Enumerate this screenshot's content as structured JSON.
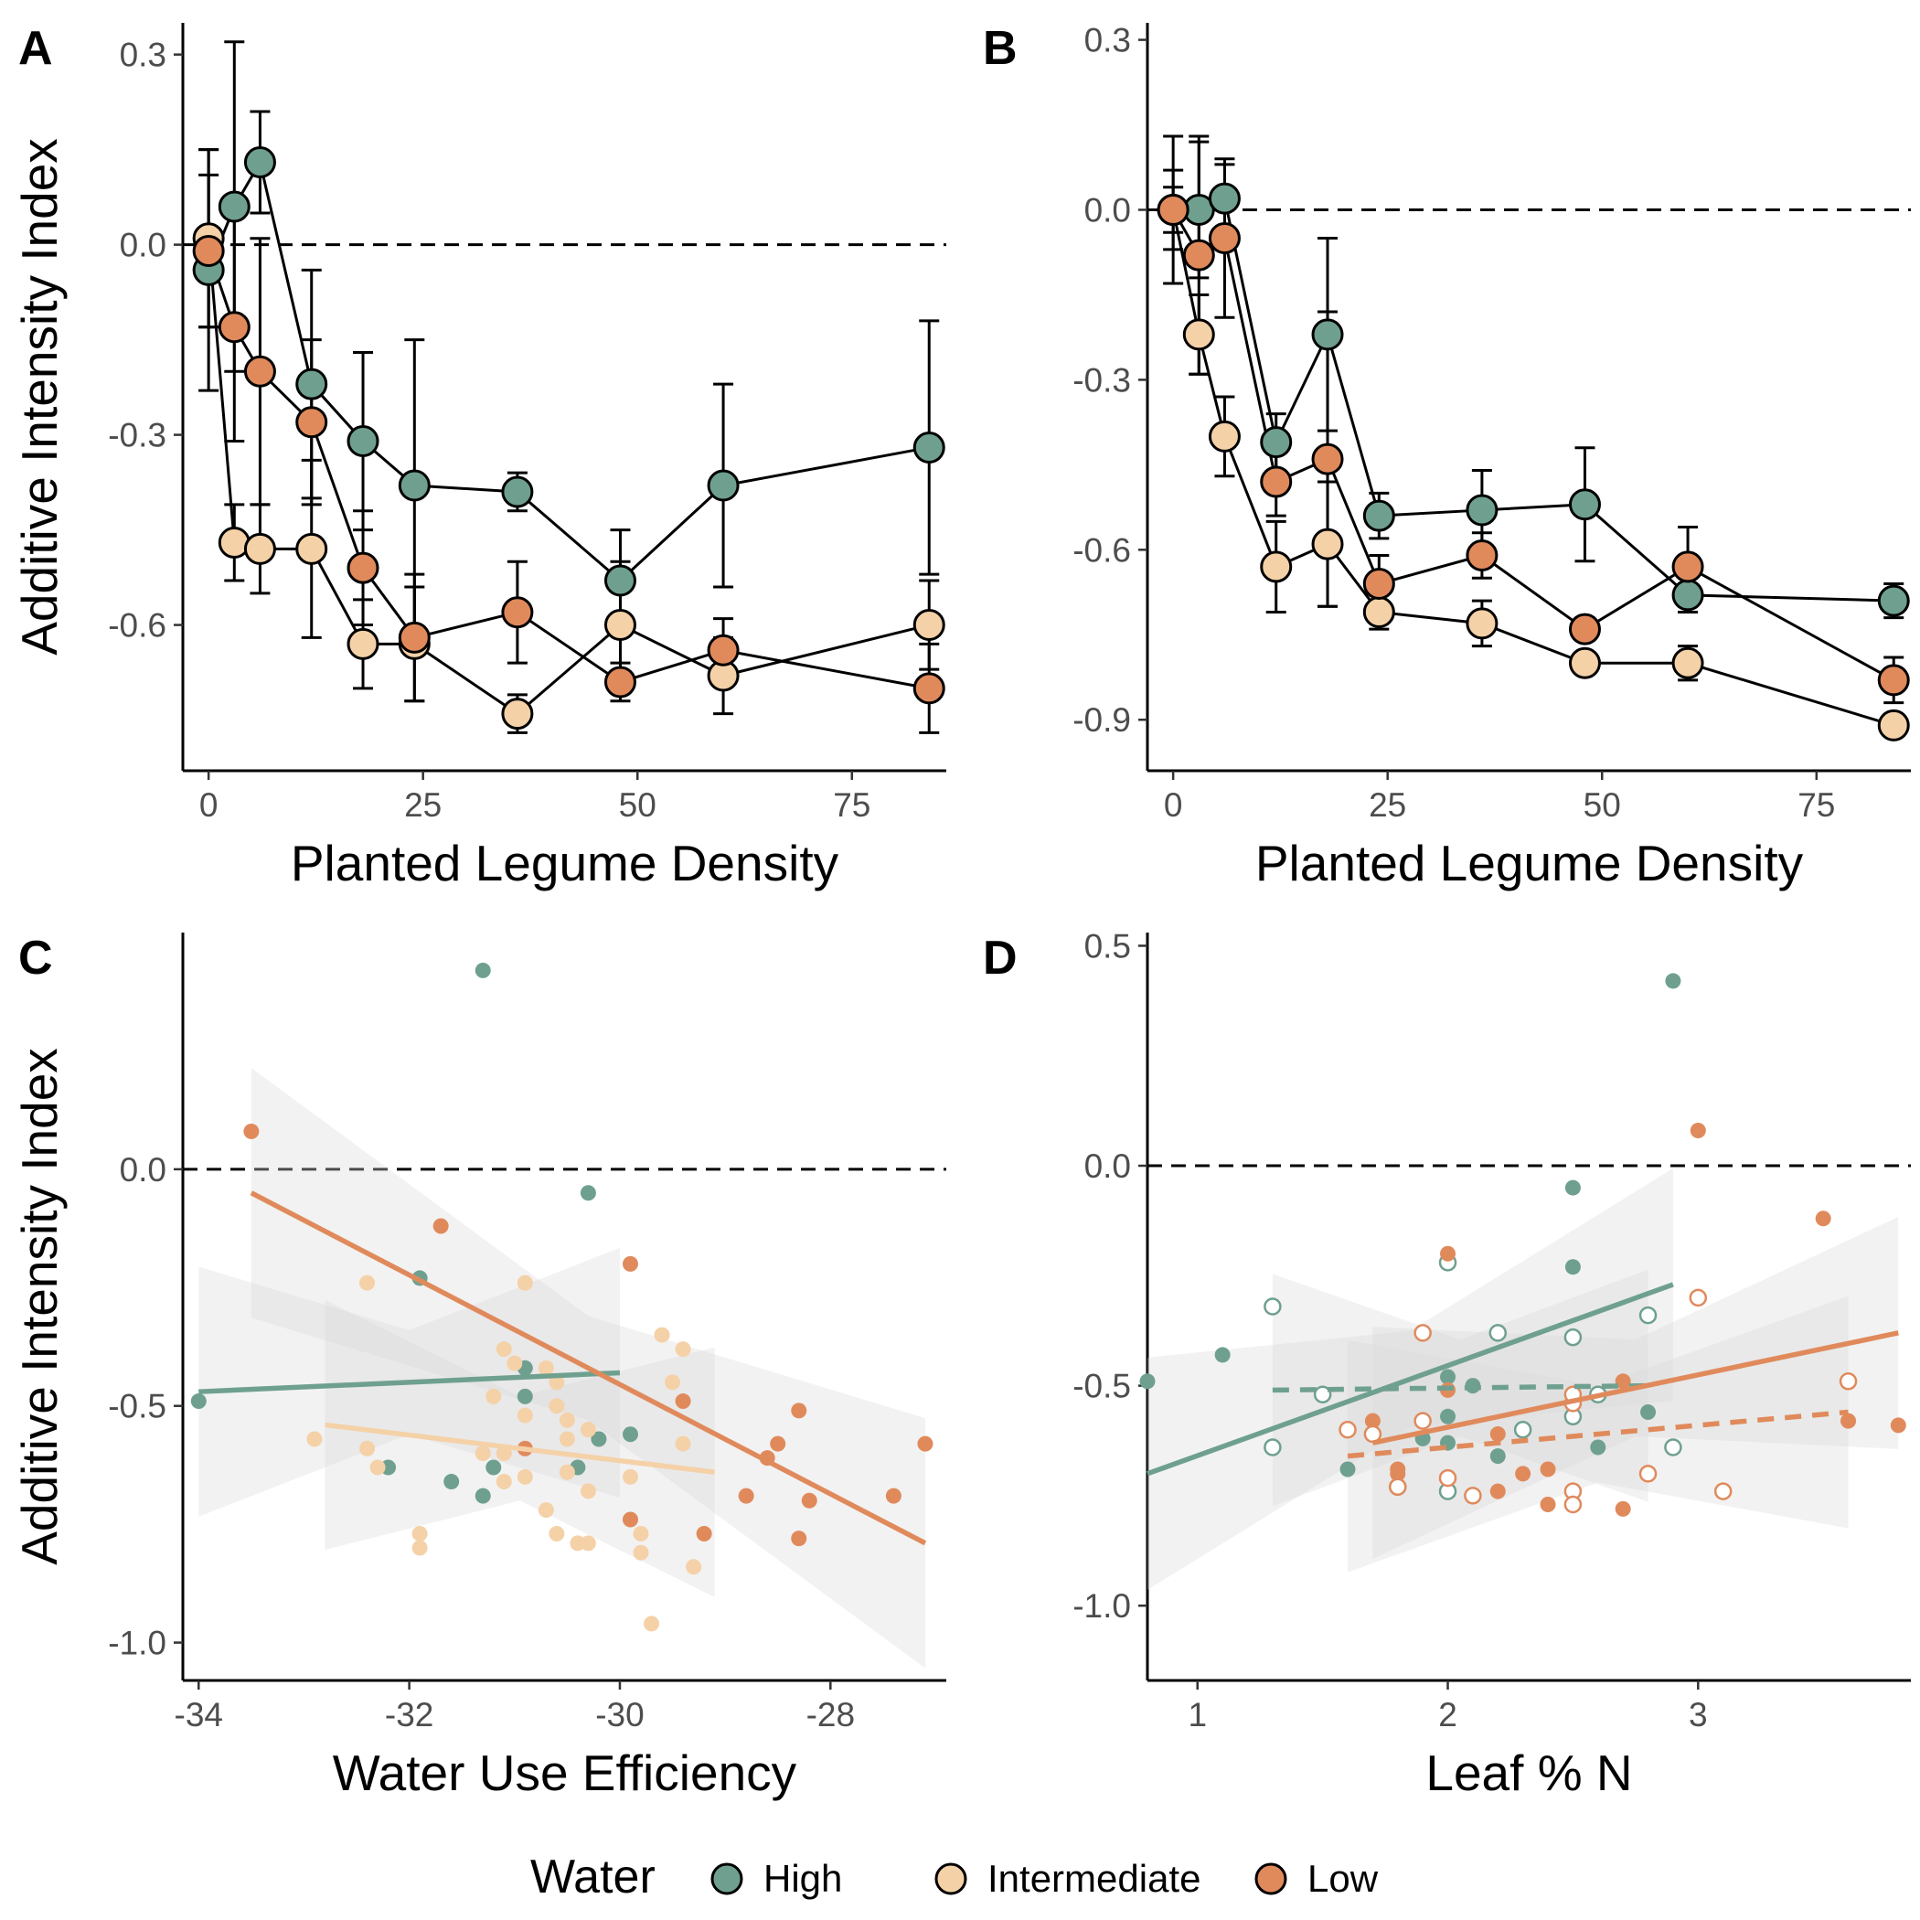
{
  "colors": {
    "High": "#6fa08f",
    "Intermediate": "#f5d1a8",
    "Low": "#e08a5c"
  },
  "legend": {
    "title": "Water",
    "items": [
      "High",
      "Intermediate",
      "Low"
    ]
  },
  "chart_data": [
    {
      "panel": "A",
      "type": "line",
      "xlabel": "Planted Legume Density",
      "ylabel": "Additive Intensity Index",
      "xlim": [
        -3,
        86
      ],
      "ylim": [
        -0.83,
        0.35
      ],
      "xticks": [
        0,
        25,
        50,
        75
      ],
      "xtick_labels": [
        "0",
        "25",
        "50",
        "75"
      ],
      "yticks": [
        0.3,
        0,
        -0.3,
        -0.6
      ],
      "ytick_labels": [
        "0.3",
        "0.0",
        "-0.3",
        "-0.6"
      ],
      "reference_line": 0,
      "series": [
        {
          "name": "High",
          "x": [
            0,
            3,
            6,
            12,
            18,
            24,
            36,
            48,
            60,
            84
          ],
          "y": [
            -0.04,
            0.06,
            0.13,
            -0.22,
            -0.31,
            -0.38,
            -0.39,
            -0.53,
            -0.38,
            -0.32
          ],
          "err": [
            0.19,
            0.26,
            0.08,
            0.18,
            0.14,
            0.23,
            0.03,
            0.08,
            0.16,
            0.2
          ]
        },
        {
          "name": "Intermediate",
          "x": [
            0,
            3,
            6,
            12,
            18,
            24,
            36,
            48,
            60,
            84
          ],
          "y": [
            0.01,
            -0.47,
            -0.48,
            -0.48,
            -0.63,
            -0.63,
            -0.74,
            -0.6,
            -0.68,
            -0.6
          ],
          "err": [
            0.14,
            0.06,
            0.07,
            0.14,
            0.07,
            0.09,
            0.03,
            0.1,
            0.06,
            0.07
          ]
        },
        {
          "name": "Low",
          "x": [
            0,
            3,
            6,
            12,
            18,
            24,
            36,
            48,
            60,
            84
          ],
          "y": [
            -0.01,
            -0.13,
            -0.2,
            -0.28,
            -0.51,
            -0.62,
            -0.58,
            -0.69,
            -0.64,
            -0.7
          ],
          "err": [
            0.12,
            0.18,
            0.21,
            0.13,
            0.09,
            0.1,
            0.08,
            0.03,
            0.05,
            0.07
          ]
        }
      ]
    },
    {
      "panel": "B",
      "type": "line",
      "xlabel": "Planted Legume Density",
      "ylabel": "",
      "xlim": [
        -3,
        86
      ],
      "ylim": [
        -0.99,
        0.33
      ],
      "xticks": [
        0,
        25,
        50,
        75
      ],
      "xtick_labels": [
        "0",
        "25",
        "50",
        "75"
      ],
      "yticks": [
        0.3,
        0,
        -0.3,
        -0.6,
        -0.9
      ],
      "ytick_labels": [
        "0.3",
        "0.0",
        "-0.3",
        "-0.6",
        "-0.9"
      ],
      "reference_line": 0,
      "series": [
        {
          "name": "High",
          "x": [
            0,
            3,
            6,
            12,
            18,
            24,
            36,
            48,
            60,
            84
          ],
          "y": [
            0,
            0,
            0.02,
            -0.41,
            -0.22,
            -0.54,
            -0.53,
            -0.52,
            -0.68,
            -0.69
          ],
          "err": [
            0.07,
            0.12,
            0.06,
            0.05,
            0.17,
            0.04,
            0.07,
            0.1,
            0.03,
            0.03
          ]
        },
        {
          "name": "Intermediate",
          "x": [
            0,
            3,
            6,
            12,
            18,
            24,
            36,
            48,
            60,
            84
          ],
          "y": [
            0,
            -0.22,
            -0.4,
            -0.63,
            -0.59,
            -0.71,
            -0.73,
            -0.8,
            -0.8,
            -0.91
          ],
          "err": [
            0.13,
            0.07,
            0.07,
            0.08,
            0.11,
            0.03,
            0.04,
            0.01,
            0.03,
            0.01
          ]
        },
        {
          "name": "Low",
          "x": [
            0,
            3,
            6,
            12,
            18,
            24,
            36,
            48,
            60,
            84
          ],
          "y": [
            0,
            -0.08,
            -0.05,
            -0.48,
            -0.44,
            -0.66,
            -0.61,
            -0.74,
            -0.63,
            -0.83
          ],
          "err": [
            0.04,
            0.21,
            0.14,
            0.06,
            0.26,
            0.05,
            0.04,
            0.02,
            0.07,
            0.04
          ]
        }
      ]
    },
    {
      "panel": "C",
      "type": "scatter",
      "xlabel": "Water Use Efficiency",
      "ylabel": "Additive Intensity Index",
      "xlim": [
        -34.15,
        -26.9
      ],
      "ylim": [
        -1.08,
        0.5
      ],
      "xticks": [
        -34,
        -32,
        -30,
        -28
      ],
      "xtick_labels": [
        "-34",
        "-32",
        "-30",
        "-28"
      ],
      "yticks": [
        0,
        -0.5,
        -1
      ],
      "ytick_labels": [
        "0.0",
        "-0.5",
        "-1.0"
      ],
      "reference_line": 0,
      "series": [
        {
          "name": "High",
          "points": [
            [
              -34,
              -0.49
            ],
            [
              -31.3,
              0.42
            ],
            [
              -30.3,
              -0.05
            ],
            [
              -31.9,
              -0.23
            ],
            [
              -30.9,
              -0.42
            ],
            [
              -30.9,
              -0.48
            ],
            [
              -30.2,
              -0.57
            ],
            [
              -29.9,
              -0.56
            ],
            [
              -30.4,
              -0.63
            ],
            [
              -31.2,
              -0.63
            ],
            [
              -31.6,
              -0.66
            ],
            [
              -32.2,
              -0.63
            ],
            [
              -31.3,
              -0.69
            ]
          ],
          "fit": {
            "x": [
              -34,
              -30
            ],
            "y": [
              -0.47,
              -0.43
            ]
          }
        },
        {
          "name": "Intermediate",
          "points": [
            [
              -32.4,
              -0.24
            ],
            [
              -30.9,
              -0.24
            ],
            [
              -31.1,
              -0.38
            ],
            [
              -29.6,
              -0.35
            ],
            [
              -29.4,
              -0.38
            ],
            [
              -30.7,
              -0.42
            ],
            [
              -31.0,
              -0.41
            ],
            [
              -30.6,
              -0.45
            ],
            [
              -31.2,
              -0.48
            ],
            [
              -29.5,
              -0.45
            ],
            [
              -30.9,
              -0.52
            ],
            [
              -30.6,
              -0.5
            ],
            [
              -30.5,
              -0.53
            ],
            [
              -30.3,
              -0.55
            ],
            [
              -32.9,
              -0.57
            ],
            [
              -32.4,
              -0.59
            ],
            [
              -31.3,
              -0.6
            ],
            [
              -30.5,
              -0.57
            ],
            [
              -29.4,
              -0.58
            ],
            [
              -32.3,
              -0.63
            ],
            [
              -30.9,
              -0.65
            ],
            [
              -31.1,
              -0.6
            ],
            [
              -30.5,
              -0.64
            ],
            [
              -29.9,
              -0.65
            ],
            [
              -30.3,
              -0.68
            ],
            [
              -31.1,
              -0.66
            ],
            [
              -30.7,
              -0.72
            ],
            [
              -31.9,
              -0.77
            ],
            [
              -31.9,
              -0.8
            ],
            [
              -30.6,
              -0.77
            ],
            [
              -29.8,
              -0.77
            ],
            [
              -30.4,
              -0.79
            ],
            [
              -30.3,
              -0.79
            ],
            [
              -29.8,
              -0.81
            ],
            [
              -29.3,
              -0.84
            ],
            [
              -29.7,
              -0.96
            ]
          ],
          "fit": {
            "x": [
              -32.8,
              -29.1
            ],
            "y": [
              -0.54,
              -0.64
            ]
          }
        },
        {
          "name": "Low",
          "points": [
            [
              -33.5,
              0.08
            ],
            [
              -31.7,
              -0.12
            ],
            [
              -29.9,
              -0.2
            ],
            [
              -30.9,
              -0.59
            ],
            [
              -29.4,
              -0.49
            ],
            [
              -28.3,
              -0.51
            ],
            [
              -28.5,
              -0.58
            ],
            [
              -27.1,
              -0.58
            ],
            [
              -28.6,
              -0.61
            ],
            [
              -28.8,
              -0.69
            ],
            [
              -28.2,
              -0.7
            ],
            [
              -27.4,
              -0.69
            ],
            [
              -29.9,
              -0.74
            ],
            [
              -29.2,
              -0.77
            ],
            [
              -28.3,
              -0.78
            ]
          ],
          "fit": {
            "x": [
              -33.5,
              -27.1
            ],
            "y": [
              -0.05,
              -0.79
            ]
          }
        }
      ]
    },
    {
      "panel": "D",
      "type": "scatter",
      "xlabel": "Leaf % N",
      "ylabel": "",
      "xlim": [
        0.8,
        3.85
      ],
      "ylim": [
        -1.17,
        0.53
      ],
      "xticks": [
        1,
        2,
        3
      ],
      "xtick_labels": [
        "1",
        "2",
        "3"
      ],
      "yticks": [
        0.5,
        0,
        -0.5,
        -1
      ],
      "ytick_labels": [
        "0.5",
        "0.0",
        "-0.5",
        "-1.0"
      ],
      "reference_line": 0,
      "series": [
        {
          "name": "High",
          "filled": true,
          "points": [
            [
              0.8,
              -0.49
            ],
            [
              1.1,
              -0.43
            ],
            [
              2.9,
              0.42
            ],
            [
              2.5,
              -0.05
            ],
            [
              2.5,
              -0.23
            ],
            [
              2.0,
              -0.48
            ],
            [
              2.1,
              -0.5
            ],
            [
              2.0,
              -0.57
            ],
            [
              1.9,
              -0.62
            ],
            [
              2.0,
              -0.63
            ],
            [
              2.2,
              -0.66
            ],
            [
              2.6,
              -0.64
            ],
            [
              2.8,
              -0.56
            ],
            [
              1.6,
              -0.69
            ]
          ],
          "fit": {
            "x": [
              0.8,
              2.9
            ],
            "y": [
              -0.7,
              -0.27
            ]
          }
        },
        {
          "name": "High",
          "filled": false,
          "points": [
            [
              1.3,
              -0.32
            ],
            [
              1.5,
              -0.52
            ],
            [
              2.0,
              -0.22
            ],
            [
              2.2,
              -0.38
            ],
            [
              2.5,
              -0.39
            ],
            [
              2.8,
              -0.34
            ],
            [
              2.5,
              -0.57
            ],
            [
              2.6,
              -0.52
            ],
            [
              2.3,
              -0.6
            ],
            [
              1.3,
              -0.64
            ],
            [
              2.9,
              -0.64
            ],
            [
              1.8,
              -0.73
            ],
            [
              2.0,
              -0.74
            ]
          ],
          "fit": {
            "x": [
              1.3,
              2.8
            ],
            "y": [
              -0.51,
              -0.5
            ]
          }
        },
        {
          "name": "Low",
          "filled": true,
          "points": [
            [
              3.0,
              0.08
            ],
            [
              3.5,
              -0.12
            ],
            [
              2.0,
              -0.2
            ],
            [
              2.0,
              -0.51
            ],
            [
              2.7,
              -0.49
            ],
            [
              3.6,
              -0.58
            ],
            [
              3.8,
              -0.59
            ],
            [
              1.7,
              -0.58
            ],
            [
              2.2,
              -0.61
            ],
            [
              1.8,
              -0.69
            ],
            [
              1.8,
              -0.7
            ],
            [
              2.2,
              -0.74
            ],
            [
              2.3,
              -0.7
            ],
            [
              2.4,
              -0.69
            ],
            [
              2.4,
              -0.77
            ],
            [
              2.7,
              -0.78
            ]
          ],
          "fit": {
            "x": [
              1.7,
              3.8
            ],
            "y": [
              -0.63,
              -0.38
            ]
          }
        },
        {
          "name": "Low",
          "filled": false,
          "points": [
            [
              1.9,
              -0.38
            ],
            [
              3.0,
              -0.3
            ],
            [
              3.6,
              -0.49
            ],
            [
              2.5,
              -0.54
            ],
            [
              2.5,
              -0.52
            ],
            [
              1.6,
              -0.6
            ],
            [
              1.9,
              -0.58
            ],
            [
              1.7,
              -0.61
            ],
            [
              2.0,
              -0.71
            ],
            [
              1.8,
              -0.73
            ],
            [
              2.5,
              -0.74
            ],
            [
              2.5,
              -0.77
            ],
            [
              2.1,
              -0.75
            ],
            [
              2.8,
              -0.7
            ],
            [
              3.1,
              -0.74
            ]
          ],
          "fit": {
            "x": [
              1.6,
              3.6
            ],
            "y": [
              -0.66,
              -0.56
            ]
          }
        }
      ]
    }
  ]
}
